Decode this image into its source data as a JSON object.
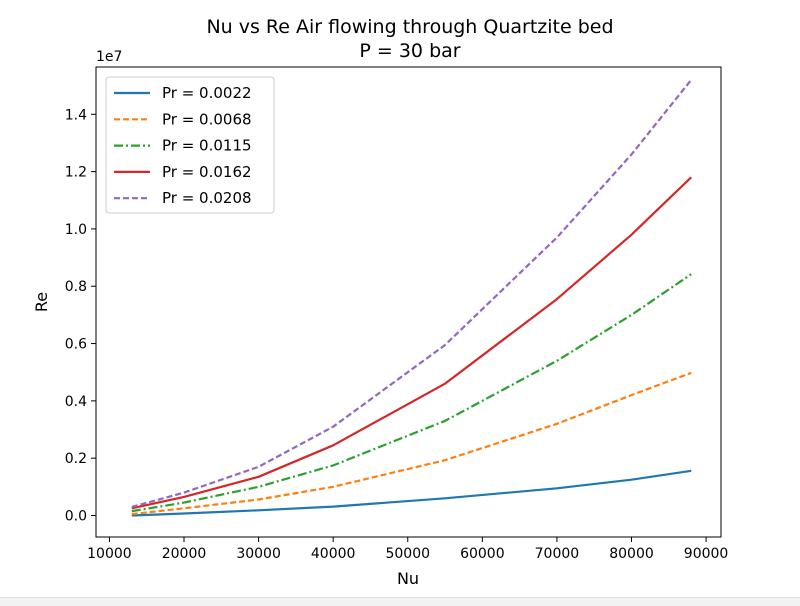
{
  "chart_data": {
    "type": "line",
    "title": "Nu vs Re Air flowing through Quartzite bed",
    "subtitle": "P = 30 bar",
    "xlabel": "Nu",
    "ylabel": "Re",
    "y_offset_label": "1e7",
    "xlim": [
      8200,
      92000
    ],
    "ylim": [
      -750000,
      15650000
    ],
    "x_ticks": [
      10000,
      20000,
      30000,
      40000,
      50000,
      60000,
      70000,
      80000,
      90000
    ],
    "x_tick_labels": [
      "10000",
      "20000",
      "30000",
      "40000",
      "50000",
      "60000",
      "70000",
      "80000",
      "90000"
    ],
    "y_ticks": [
      0,
      2000000,
      4000000,
      6000000,
      8000000,
      10000000,
      12000000,
      14000000
    ],
    "y_tick_labels": [
      "0.0",
      "0.2",
      "0.4",
      "0.6",
      "0.8",
      "1.0",
      "1.2",
      "1.4"
    ],
    "legend_position": "top-left",
    "grid": false,
    "series": [
      {
        "name": "Pr = 0.0022",
        "color": "#1f77b4",
        "dash": "solid",
        "x": [
          13000,
          20000,
          30000,
          40000,
          55000,
          70000,
          80000,
          88000
        ],
        "y": [
          0,
          70000,
          180000,
          310000,
          600000,
          950000,
          1250000,
          1560000
        ]
      },
      {
        "name": "Pr = 0.0068",
        "color": "#ff7f0e",
        "dash": "dashed",
        "x": [
          13000,
          20000,
          30000,
          40000,
          55000,
          70000,
          80000,
          88000
        ],
        "y": [
          50000,
          250000,
          560000,
          1000000,
          1930000,
          3200000,
          4200000,
          4980000
        ]
      },
      {
        "name": "Pr = 0.0115",
        "color": "#2ca02c",
        "dash": "dashdot",
        "x": [
          13000,
          20000,
          30000,
          40000,
          55000,
          70000,
          80000,
          88000
        ],
        "y": [
          150000,
          450000,
          1000000,
          1750000,
          3300000,
          5400000,
          7000000,
          8420000
        ]
      },
      {
        "name": "Pr = 0.0162",
        "color": "#d62728",
        "dash": "solid",
        "x": [
          13000,
          20000,
          30000,
          40000,
          55000,
          70000,
          80000,
          88000
        ],
        "y": [
          250000,
          650000,
          1350000,
          2450000,
          4600000,
          7550000,
          9800000,
          11800000
        ]
      },
      {
        "name": "Pr = 0.0208",
        "color": "#9467bd",
        "dash": "dashed",
        "x": [
          13000,
          20000,
          30000,
          40000,
          55000,
          70000,
          80000,
          88000
        ],
        "y": [
          300000,
          800000,
          1700000,
          3100000,
          5950000,
          9700000,
          12600000,
          15200000
        ]
      }
    ]
  }
}
